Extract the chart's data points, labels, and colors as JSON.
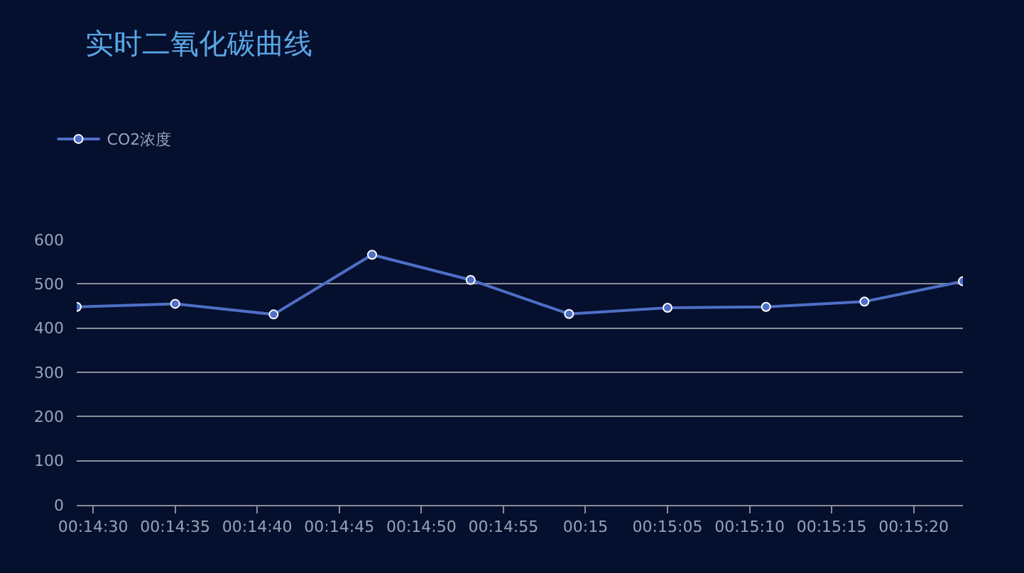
{
  "chart_data": {
    "type": "line",
    "title": "实时二氧化碳曲线",
    "x": [
      0.241389,
      0.243056,
      0.244722,
      0.246389,
      0.248056,
      0.249722,
      0.251389,
      0.253056,
      0.254722,
      0.256389
    ],
    "series": [
      {
        "name": "CO2浓度",
        "color": "#4f6fc6",
        "values": [
          448,
          455,
          431,
          566,
          509,
          432,
          446,
          448,
          460,
          506
        ]
      }
    ],
    "xlim": [
      0.241389,
      0.256389
    ],
    "xticks": [
      {
        "value": 0.241667,
        "label": "00:14:30"
      },
      {
        "value": 0.243056,
        "label": "00:14:35"
      },
      {
        "value": 0.244444,
        "label": "00:14:40"
      },
      {
        "value": 0.245833,
        "label": "00:14:45"
      },
      {
        "value": 0.247222,
        "label": "00:14:50"
      },
      {
        "value": 0.248611,
        "label": "00:14:55"
      },
      {
        "value": 0.25,
        "label": "00:15"
      },
      {
        "value": 0.251389,
        "label": "00:15:05"
      },
      {
        "value": 0.252778,
        "label": "00:15:10"
      },
      {
        "value": 0.254167,
        "label": "00:15:15"
      },
      {
        "value": 0.255556,
        "label": "00:15:20"
      }
    ],
    "ylim": [
      0,
      600
    ],
    "yticks": [
      0,
      100,
      200,
      300,
      400,
      500,
      600
    ],
    "grid": "y",
    "legend": "top left",
    "marker": "circle",
    "line_style": "solid"
  }
}
